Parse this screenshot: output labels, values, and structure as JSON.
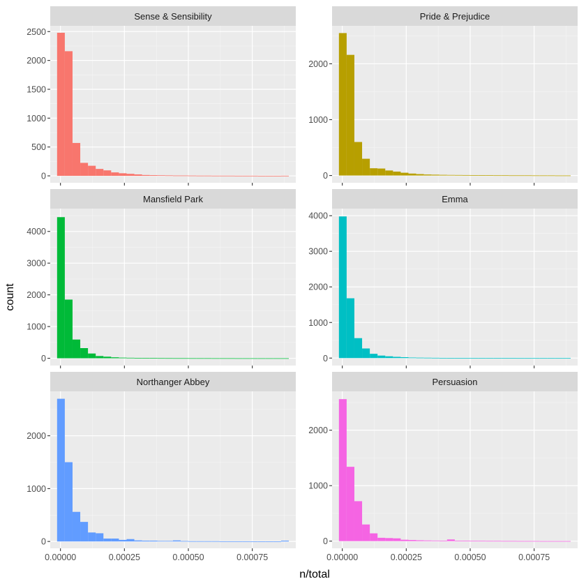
{
  "chart_data": {
    "type": "bar",
    "subtype": "faceted-histogram",
    "xlabel": "n/total",
    "ylabel": "count",
    "bins": 30,
    "bin_start": -1.32e-05,
    "binwidth": 3.02e-05,
    "xlim": [
      -4e-05,
      0.00092
    ],
    "x_ticks": [
      0,
      0.00025,
      0.0005,
      0.00075
    ],
    "x_tick_labels": [
      "0.00000",
      "0.00025",
      "0.00050",
      "0.00075"
    ],
    "layout": {
      "ncol": 2,
      "nrow": 3,
      "scales": "free_y"
    },
    "facets": [
      {
        "name": "Sense & Sensibility",
        "color": "#F8766D",
        "ylim": [
          -120,
          2600
        ],
        "y_ticks": [
          0,
          500,
          1000,
          1500,
          2000,
          2500
        ],
        "counts": [
          2480,
          2160,
          570,
          225,
          175,
          120,
          95,
          60,
          45,
          35,
          25,
          15,
          12,
          10,
          8,
          6,
          6,
          5,
          4,
          4,
          3,
          3,
          3,
          2,
          2,
          2,
          1,
          1,
          1,
          2
        ]
      },
      {
        "name": "Pride & Prejudice",
        "color": "#B79F00",
        "ylim": [
          -130,
          2680
        ],
        "y_ticks": [
          0,
          1000,
          2000
        ],
        "counts": [
          2550,
          2160,
          600,
          300,
          130,
          125,
          90,
          70,
          50,
          35,
          25,
          18,
          15,
          12,
          10,
          9,
          8,
          7,
          6,
          5,
          4,
          4,
          3,
          3,
          3,
          2,
          2,
          2,
          1,
          1
        ]
      },
      {
        "name": "Mansfield Park",
        "color": "#00BA38",
        "ylim": [
          -230,
          4720
        ],
        "y_ticks": [
          0,
          1000,
          2000,
          3000,
          4000
        ],
        "counts": [
          4450,
          1850,
          590,
          320,
          150,
          70,
          50,
          30,
          20,
          15,
          12,
          10,
          8,
          6,
          5,
          4,
          4,
          3,
          3,
          3,
          2,
          2,
          2,
          1,
          1,
          1,
          1,
          1,
          1,
          1
        ]
      },
      {
        "name": "Emma",
        "color": "#00BFC4",
        "ylim": [
          -210,
          4200
        ],
        "y_ticks": [
          0,
          1000,
          2000,
          3000,
          4000
        ],
        "counts": [
          3980,
          1680,
          560,
          270,
          120,
          70,
          50,
          35,
          25,
          15,
          12,
          10,
          8,
          6,
          5,
          4,
          4,
          3,
          3,
          3,
          2,
          2,
          2,
          1,
          1,
          1,
          1,
          1,
          1,
          1
        ]
      },
      {
        "name": "Northanger Abbey",
        "color": "#619CFF",
        "ylim": [
          -130,
          2840
        ],
        "y_ticks": [
          0,
          1000,
          2000
        ],
        "counts": [
          2700,
          1500,
          560,
          370,
          170,
          155,
          55,
          55,
          30,
          45,
          20,
          15,
          15,
          10,
          10,
          20,
          8,
          5,
          5,
          5,
          5,
          3,
          3,
          3,
          3,
          2,
          2,
          2,
          1,
          15
        ]
      },
      {
        "name": "Persuasion",
        "color": "#F564E3",
        "ylim": [
          -130,
          2700
        ],
        "y_ticks": [
          0,
          1000,
          2000
        ],
        "counts": [
          2560,
          1340,
          720,
          300,
          140,
          60,
          55,
          50,
          25,
          20,
          15,
          12,
          10,
          8,
          30,
          7,
          6,
          5,
          5,
          4,
          4,
          3,
          3,
          2,
          2,
          2,
          1,
          1,
          1,
          1
        ]
      }
    ]
  }
}
